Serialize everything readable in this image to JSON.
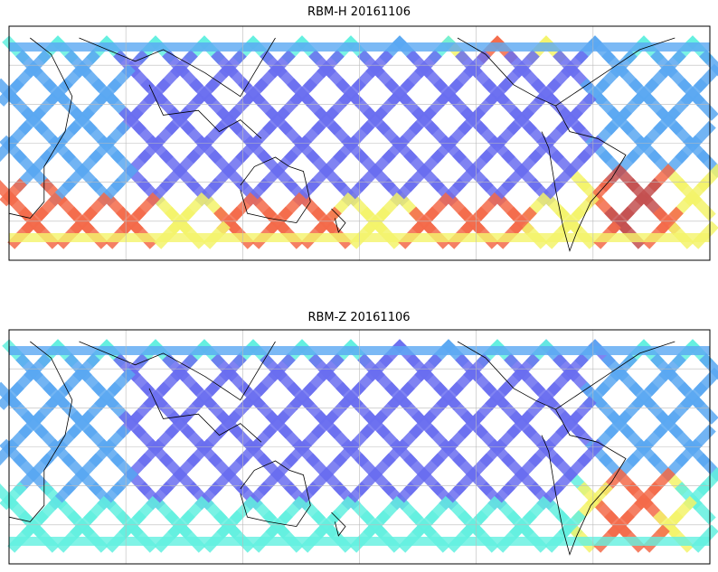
{
  "figure": {
    "panels": [
      {
        "id": "rbm_h",
        "title": "RBM-H 20161106",
        "field": "RBM-H",
        "date": "20161106",
        "colormap": "jet",
        "notable_regions": [
          {
            "area": "southern-ocean-band",
            "level": 0.85
          },
          {
            "area": "south-atlantic",
            "level": 1.0
          },
          {
            "area": "north-atlantic-top",
            "level": 0.75
          },
          {
            "area": "south-africa-edge",
            "level": 0.8
          }
        ]
      },
      {
        "id": "rbm_z",
        "title": "RBM-Z 20161106",
        "field": "RBM-Z",
        "date": "20161106",
        "colormap": "jet",
        "notable_regions": [
          {
            "area": "southern-ocean-band",
            "level": 0.5
          },
          {
            "area": "south-atlantic",
            "level": 0.85
          },
          {
            "area": "north-atlantic-top",
            "level": 0.4
          },
          {
            "area": "south-africa-edge",
            "level": 0.45
          }
        ]
      }
    ],
    "colors": {
      "low": "#6a6ef0",
      "mid_low": "#5aa8f2",
      "mid": "#62f0e0",
      "mid_high": "#f4f46a",
      "high": "#f46a4a",
      "max": "#c45050",
      "coast": "#000000",
      "grid": "#bbbbbb"
    }
  }
}
